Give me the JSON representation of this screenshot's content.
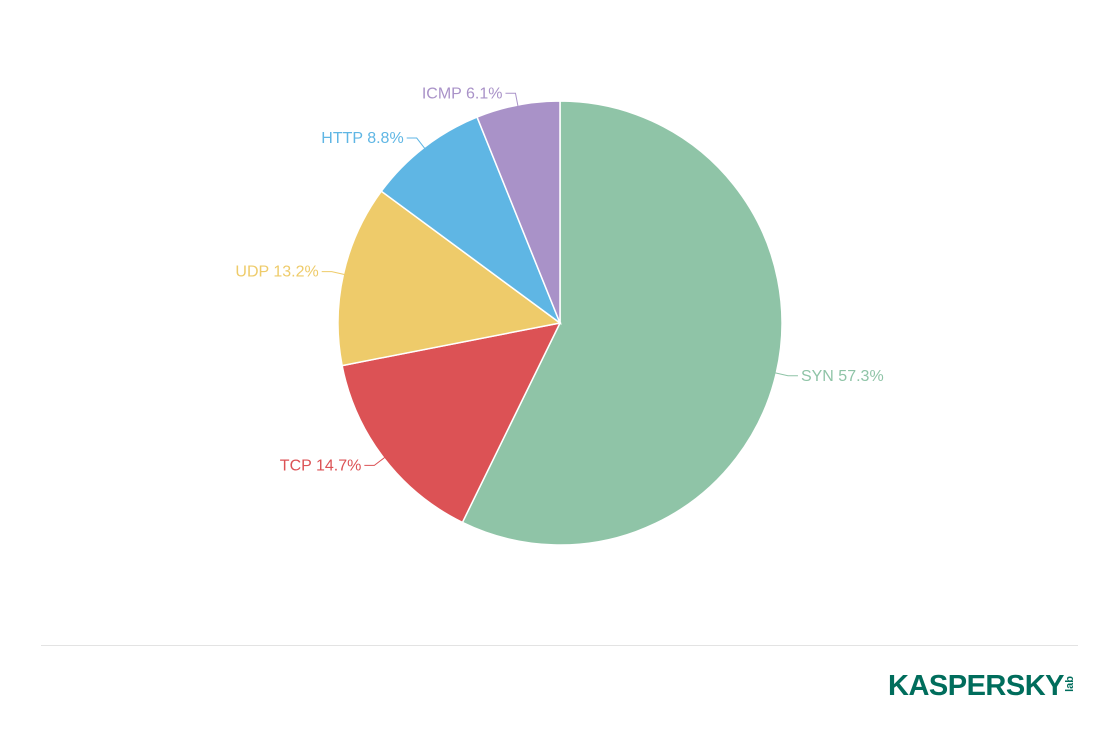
{
  "chart_data": {
    "type": "pie",
    "title": "",
    "slices": [
      {
        "label": "SYN",
        "value": 57.3,
        "display": "SYN 57.3%",
        "color": "#8fc4a7"
      },
      {
        "label": "TCP",
        "value": 14.7,
        "display": "TCP 14.7%",
        "color": "#dc5255"
      },
      {
        "label": "UDP",
        "value": 13.2,
        "display": "UDP 13.2%",
        "color": "#eecb6a"
      },
      {
        "label": "HTTP",
        "value": 8.8,
        "display": "HTTP 8.8%",
        "color": "#5fb6e4"
      },
      {
        "label": "ICMP",
        "value": 6.1,
        "display": "ICMP 6.1%",
        "color": "#a992c8"
      }
    ],
    "start_angle_deg": 0,
    "direction": "clockwise",
    "legend": "none"
  },
  "footer": {
    "logo_text": "KASPERSKY",
    "logo_sub": "lab",
    "logo_color": "#006d5c",
    "divider_color": "#e3e3e3"
  }
}
